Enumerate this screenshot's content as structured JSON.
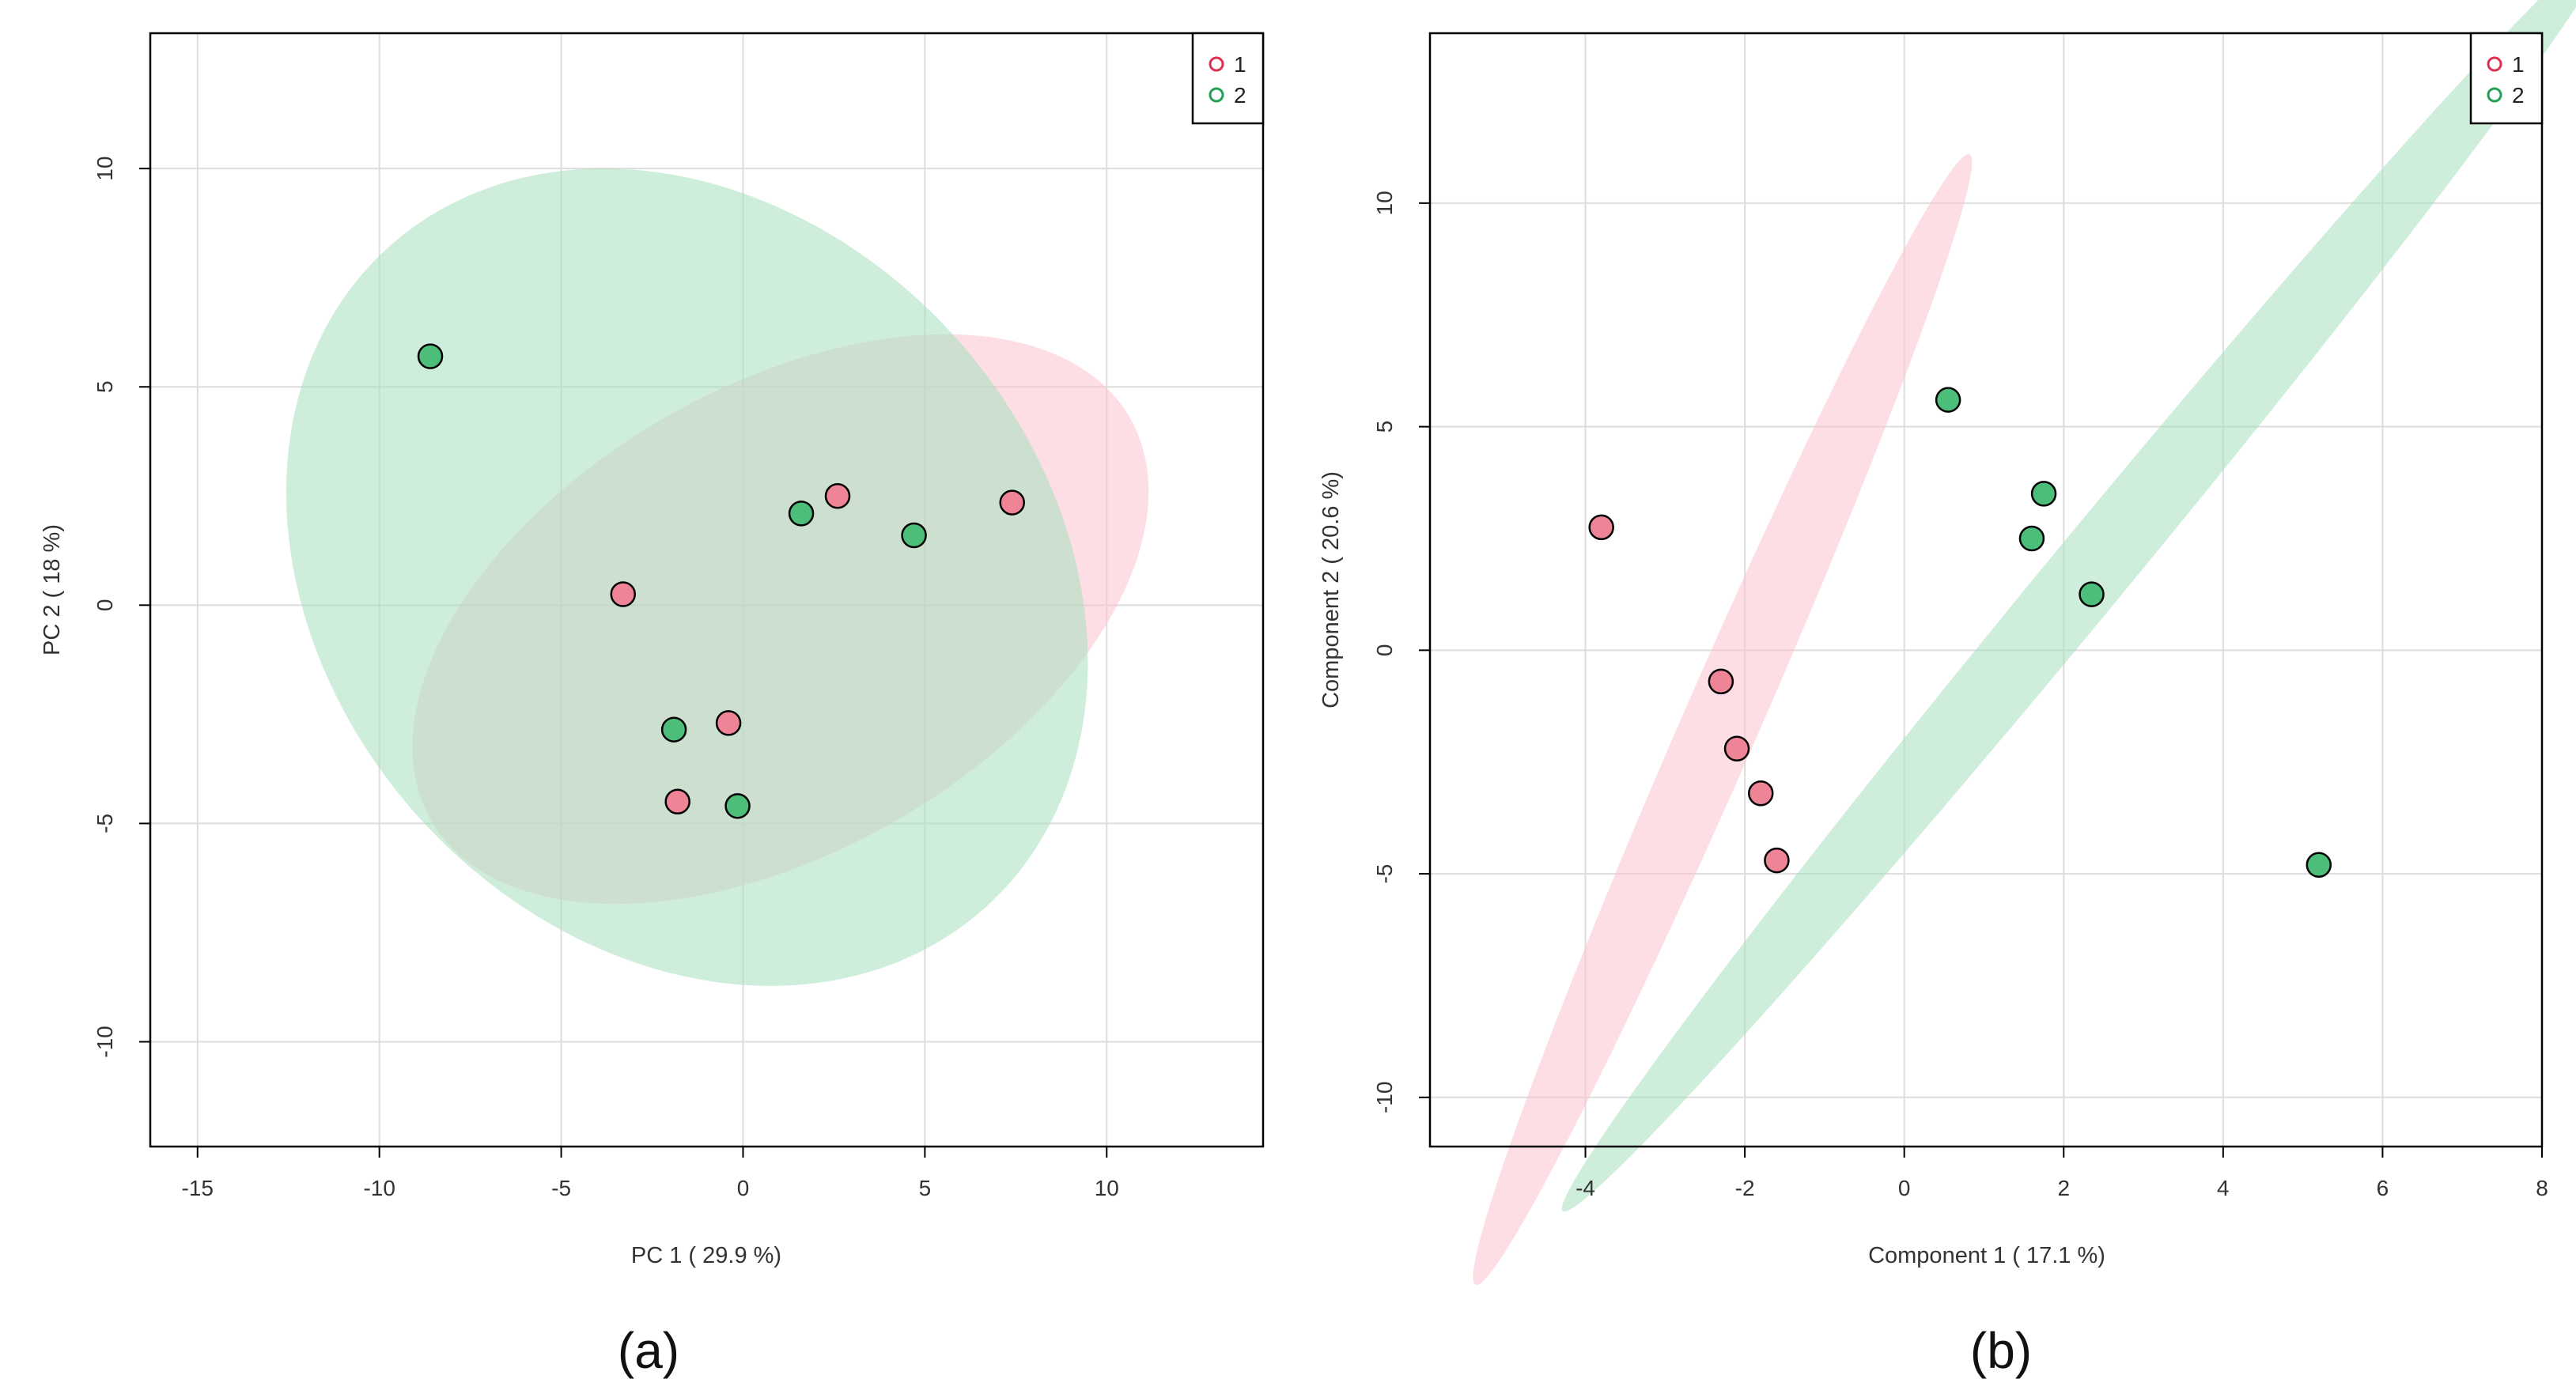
{
  "colors": {
    "group1_fill": "#f08497",
    "group1_stroke": "#e0304f",
    "group2_fill": "#4dbd7a",
    "group2_stroke": "#1fa055",
    "ellipse1": "#fbc2cf",
    "ellipse2": "#a6e0be",
    "grid": "#dddddd",
    "axis": "#000000"
  },
  "chart_data": [
    {
      "type": "scatter",
      "panel_label": "(a)",
      "xlabel": "PC 1 ( 29.9 %)",
      "ylabel": "PC 2 ( 18 %)",
      "xlim": [
        -16.3,
        14.3
      ],
      "ylim": [
        -12.4,
        13.1
      ],
      "xticks": [
        -15,
        -10,
        -5,
        0,
        5,
        10
      ],
      "yticks": [
        -10,
        -5,
        0,
        5,
        10
      ],
      "grid": true,
      "legend_position": "top-right",
      "legend": [
        "1",
        "2"
      ],
      "ellipses": [
        {
          "group": "1",
          "cx": 1.03,
          "cy": -0.32,
          "rx": 11.09,
          "ry": 6.39,
          "angle": 30.0
        },
        {
          "group": "2",
          "cx": -1.54,
          "cy": 0.64,
          "rx": 12.24,
          "ry": 9.9,
          "angle": -47.7
        }
      ],
      "series": [
        {
          "name": "1",
          "points": [
            [
              -3.3,
              0.25
            ],
            [
              2.6,
              2.5
            ],
            [
              7.4,
              2.35
            ],
            [
              -0.4,
              -2.7
            ],
            [
              -1.8,
              -4.5
            ]
          ]
        },
        {
          "name": "2",
          "points": [
            [
              -8.6,
              5.7
            ],
            [
              1.6,
              2.1
            ],
            [
              4.7,
              1.6
            ],
            [
              -1.9,
              -2.85
            ],
            [
              -0.15,
              -4.6
            ]
          ]
        }
      ]
    },
    {
      "type": "scatter",
      "panel_label": "(b)",
      "xlabel": "Component 1 ( 17.1 %)",
      "ylabel": "Component 2 ( 20.6 %)",
      "xlim": [
        -5.95,
        8.0
      ],
      "ylim": [
        -11.1,
        13.8
      ],
      "xticks": [
        -4,
        -2,
        0,
        2,
        4,
        6,
        8
      ],
      "yticks": [
        -10,
        -5,
        0,
        5,
        10
      ],
      "grid": true,
      "legend_position": "top-right",
      "legend": [
        "1",
        "2"
      ],
      "ellipses": [
        {
          "group": "1",
          "cx": -2.28,
          "cy": -1.55,
          "rx": 7.74,
          "ry": 0.48,
          "angle": 66.4
        },
        {
          "group": "2",
          "cx": 2.28,
          "cy": 1.65,
          "rx": 10.32,
          "ry": 0.49,
          "angle": 50.5
        }
      ],
      "series": [
        {
          "name": "1",
          "points": [
            [
              -3.8,
              2.75
            ],
            [
              -2.3,
              -0.7
            ],
            [
              -2.1,
              -2.2
            ],
            [
              -1.8,
              -3.2
            ],
            [
              -1.6,
              -4.7
            ]
          ]
        },
        {
          "name": "2",
          "points": [
            [
              0.55,
              5.6
            ],
            [
              1.75,
              3.5
            ],
            [
              1.6,
              2.5
            ],
            [
              2.35,
              1.25
            ],
            [
              5.2,
              -4.8
            ]
          ]
        }
      ]
    }
  ]
}
